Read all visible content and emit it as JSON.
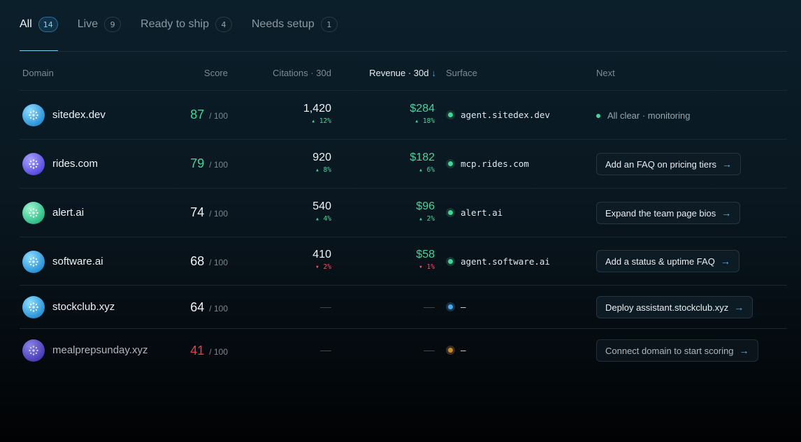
{
  "tabs": [
    {
      "label": "All",
      "count": "14"
    },
    {
      "label": "Live",
      "count": "9"
    },
    {
      "label": "Ready to ship",
      "count": "4"
    },
    {
      "label": "Needs setup",
      "count": "1"
    }
  ],
  "columns": {
    "domain": "Domain",
    "score": "Score",
    "citations": "Citations · 30d",
    "revenue": "Revenue · 30d",
    "sort_arrow": "↓",
    "surface": "Surface",
    "next": "Next"
  },
  "score_suffix": "/ 100",
  "rows": [
    {
      "domain": "sitedex.dev",
      "score": "87",
      "citations": "1,420",
      "citations_delta": "▴ 12%",
      "revenue": "$284",
      "revenue_delta": "▴ 18%",
      "surface": "agent.sitedex.dev",
      "next": "All clear · monitoring"
    },
    {
      "domain": "rides.com",
      "score": "79",
      "citations": "920",
      "citations_delta": "▴ 8%",
      "revenue": "$182",
      "revenue_delta": "▴ 6%",
      "surface": "mcp.rides.com",
      "next": "Add an FAQ on pricing tiers"
    },
    {
      "domain": "alert.ai",
      "score": "74",
      "citations": "540",
      "citations_delta": "▴ 4%",
      "revenue": "$96",
      "revenue_delta": "▴ 2%",
      "surface": "alert.ai",
      "next": "Expand the team page bios"
    },
    {
      "domain": "software.ai",
      "score": "68",
      "citations": "410",
      "citations_delta": "▾ 2%",
      "revenue": "$58",
      "revenue_delta": "▾ 1%",
      "surface": "agent.software.ai",
      "next": "Add a status & uptime FAQ"
    },
    {
      "domain": "stockclub.xyz",
      "score": "64",
      "surface": "–",
      "next": "Deploy assistant.stockclub.xyz"
    },
    {
      "domain": "mealprepsunday.xyz",
      "score": "41",
      "surface": "–",
      "next": "Connect domain to start scoring"
    }
  ],
  "next_arrow": "→",
  "colors": {
    "accent": "#4aa8e6",
    "positive": "#3fd69a",
    "negative": "#e0404c"
  }
}
